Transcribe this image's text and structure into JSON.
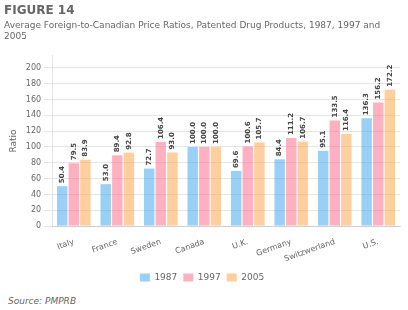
{
  "chart_data": {
    "type": "bar",
    "title": "FIGURE 14",
    "subtitle": "Average Foreign-to-Canadian Price Ratios, Patented Drug Products, 1987, 1997 and 2005",
    "y_label": "Ratio",
    "source": "Source: PMPRB",
    "categories": [
      "Italy",
      "France",
      "Sweden",
      "Canada",
      "U.K.",
      "Germany",
      "Switzwerland",
      "U.S."
    ],
    "series": [
      {
        "name": "1987",
        "values": [
          50.4,
          53.0,
          72.7,
          100.0,
          69.6,
          84.4,
          95.1,
          136.3
        ],
        "value_labels": [
          "50.4",
          "53.0",
          "72.7",
          "100.0",
          "69.6",
          "84.4",
          "95.1",
          "136.3"
        ]
      },
      {
        "name": "1997",
        "values": [
          79.5,
          89.4,
          106.4,
          100.0,
          100.6,
          111.2,
          133.5,
          156.2
        ],
        "value_labels": [
          "79.5",
          "89.4",
          "106.4",
          "100.0",
          "100.6",
          "111.2",
          "133.5",
          "156.2"
        ]
      },
      {
        "name": "2005",
        "values": [
          83.9,
          92.8,
          93.0,
          100.0,
          105.7,
          106.7,
          116.4,
          172.2
        ],
        "value_labels": [
          "83.9",
          "92.8",
          "93.0",
          "100.0",
          "105.7",
          "106.7",
          "116.4",
          "172.2"
        ]
      }
    ],
    "ylim": [
      0,
      215
    ],
    "yticks": [
      0,
      20,
      40,
      60,
      80,
      100,
      120,
      140,
      160,
      180,
      200
    ],
    "grid": true,
    "legend": "bottom",
    "data_labels": true
  }
}
